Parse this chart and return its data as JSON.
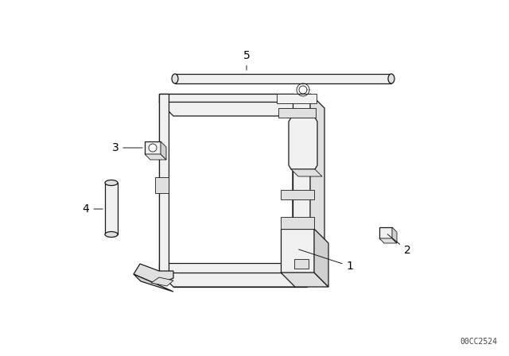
{
  "background_color": "#ffffff",
  "line_color": "#1a1a1a",
  "label_color": "#000000",
  "watermark": "00CC2524",
  "figsize": [
    6.4,
    4.48
  ],
  "dpi": 100
}
